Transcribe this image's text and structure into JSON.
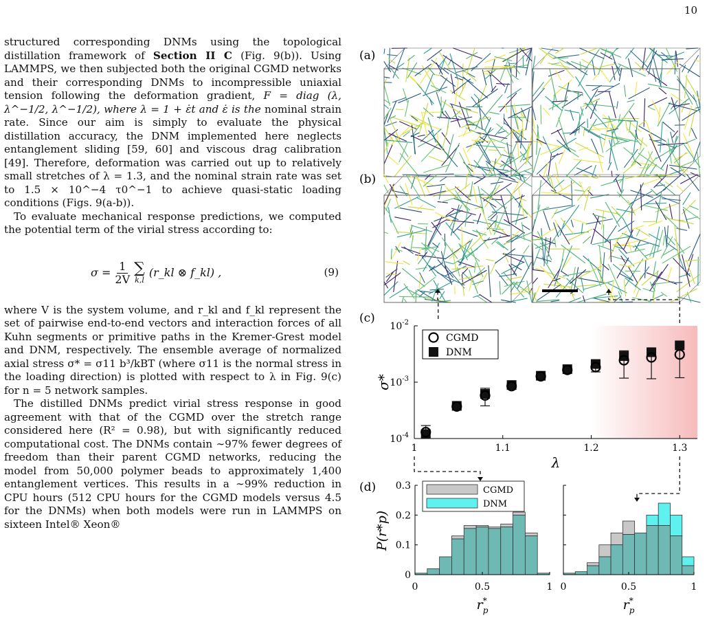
{
  "page_number": "10",
  "text": {
    "p1": "structured corresponding DNMs using the topological distillation framework of",
    "p1_ref": "Section II C",
    "p1b": "(Fig. 9(b)). Using LAMMPS, we then subjected both the original CGMD networks and their corresponding DNMs to incompressible uniaxial tension following the deformation gradient,",
    "p1_F": "F = diag (λ, λ^−1/2, λ^−1/2), where λ = 1 + ε̇t and ε̇ is the",
    "p1c": "nominal strain rate. Since our aim is simply to evaluate the physical distillation accuracy, the DNM implemented here neglects entanglement sliding [59, 60] and viscous drag calibration [49]. Therefore, deformation was carried out up to relatively small stretches of λ = 1.3, and the nominal strain rate was set to 1.5 × 10^−4 τ0^−1 to achieve quasi-static loading conditions (Figs. 9(a-b)).",
    "p2": "To evaluate mechanical response predictions, we computed the potential term of the virial stress according to:",
    "eq_lhs": "σ =",
    "eq_num": "1",
    "eq_den": "2V",
    "eq_sum_sub": "k,l",
    "eq_body": "(r_kl ⊗ f_kl) ,",
    "eq_label": "(9)",
    "p3": "where V is the system volume, and r_kl and f_kl represent the set of pairwise end-to-end vectors and interaction forces of all Kuhn segments or primitive paths in the Kremer-Grest model and DNM, respectively. The ensemble average of normalized axial stress σ* = σ11 b³/kBT (where σ11 is the normal stress in the loading direction) is plotted with respect to λ in Fig. 9(c) for n = 5 network samples.",
    "p4": "The distilled DNMs predict virial stress response in good agreement with that of the CGMD over the stretch range considered here (R² = 0.98), but with significantly reduced computational cost. The DNMs contain ∼97% fewer degrees of freedom than their parent CGMD networks, reducing the model from 50,000 polymer beads to approximately 1,400 entanglement vertices. This results in a ∼99% reduction in CPU hours (512 CPU hours for the CGMD models versus 4.5 for the DNMs) when both models were run in LAMMPS on sixteen Intel® Xeon®"
  },
  "figure": {
    "labels": [
      "(a)",
      "(b)",
      "(c)",
      "(d)"
    ]
  },
  "colors": {
    "cgmd_fill": "#c8c8c8",
    "dnm_fill": "#5ff0f0",
    "overlap": "#6fb9b5",
    "highlight": "#f6b3b3"
  },
  "chart_data": [
    {
      "type": "scatter",
      "panel": "(c)",
      "xlabel": "λ",
      "ylabel": "σ*",
      "yscale": "log",
      "xlim": [
        1.0,
        1.32
      ],
      "ylim": [
        0.0001,
        0.01
      ],
      "xticks": [
        "1",
        "1.1",
        "1.2",
        "1.3"
      ],
      "yticks": [
        "10^-4",
        "10^-3",
        "10^-2"
      ],
      "legend": [
        "CGMD",
        "DNM"
      ],
      "legend_position": "top-left",
      "x": [
        1.013,
        1.048,
        1.08,
        1.11,
        1.143,
        1.173,
        1.205,
        1.237,
        1.268,
        1.3
      ],
      "series": [
        {
          "name": "CGMD",
          "values": [
            0.00013,
            0.00037,
            0.00058,
            0.00085,
            0.00127,
            0.00165,
            0.00185,
            0.00245,
            0.00275,
            0.0031
          ],
          "err_low": [
            0.000105,
            0.00032,
            0.00038,
            0.00075,
            0.00117,
            0.00152,
            0.00152,
            0.00118,
            0.00115,
            0.0012
          ],
          "err_high": [
            0.00017,
            0.00042,
            0.00078,
            0.00095,
            0.00137,
            0.00178,
            0.0022,
            0.0036,
            0.0038,
            0.0045
          ]
        },
        {
          "name": "DNM",
          "values": [
            0.00012,
            0.00038,
            0.00062,
            0.00089,
            0.0013,
            0.0017,
            0.0021,
            0.0029,
            0.0034,
            0.0045
          ]
        }
      ]
    },
    {
      "type": "bar",
      "panel": "(d) left",
      "xlabel": "r*_p",
      "ylabel": "P(r*_p)",
      "xlim": [
        0,
        1
      ],
      "ylim": [
        0,
        0.3
      ],
      "xticks": [
        "0",
        "0.5",
        "1"
      ],
      "yticks": [
        "0",
        "0.1",
        "0.2",
        "0.3"
      ],
      "legend": [
        "CGMD",
        "DNM"
      ],
      "bin_edges": [
        0,
        0.0909,
        0.1818,
        0.2727,
        0.3636,
        0.4545,
        0.5455,
        0.6364,
        0.7273,
        0.8182,
        0.9091,
        1.0
      ],
      "series": [
        {
          "name": "CGMD",
          "values": [
            0.005,
            0.02,
            0.06,
            0.13,
            0.165,
            0.165,
            0.16,
            0.17,
            0.21,
            0.14,
            0.005
          ]
        },
        {
          "name": "DNM",
          "values": [
            0.005,
            0.02,
            0.06,
            0.12,
            0.155,
            0.16,
            0.155,
            0.16,
            0.2,
            0.13,
            0.005
          ]
        }
      ]
    },
    {
      "type": "bar",
      "panel": "(d) right",
      "xlabel": "r*_p",
      "ylabel": "",
      "xlim": [
        0,
        1
      ],
      "ylim": [
        0,
        0.3
      ],
      "xticks": [
        "0",
        "0.5",
        "1"
      ],
      "bin_edges": [
        0,
        0.0909,
        0.1818,
        0.2727,
        0.3636,
        0.4545,
        0.5455,
        0.6364,
        0.7273,
        0.8182,
        0.9091,
        1.0
      ],
      "series": [
        {
          "name": "CGMD",
          "values": [
            0.005,
            0.01,
            0.04,
            0.1,
            0.14,
            0.18,
            0.14,
            0.165,
            0.165,
            0.13,
            0.03
          ]
        },
        {
          "name": "DNM",
          "values": [
            0.005,
            0.01,
            0.03,
            0.06,
            0.1,
            0.135,
            0.14,
            0.2,
            0.24,
            0.2,
            0.06
          ]
        }
      ]
    }
  ]
}
